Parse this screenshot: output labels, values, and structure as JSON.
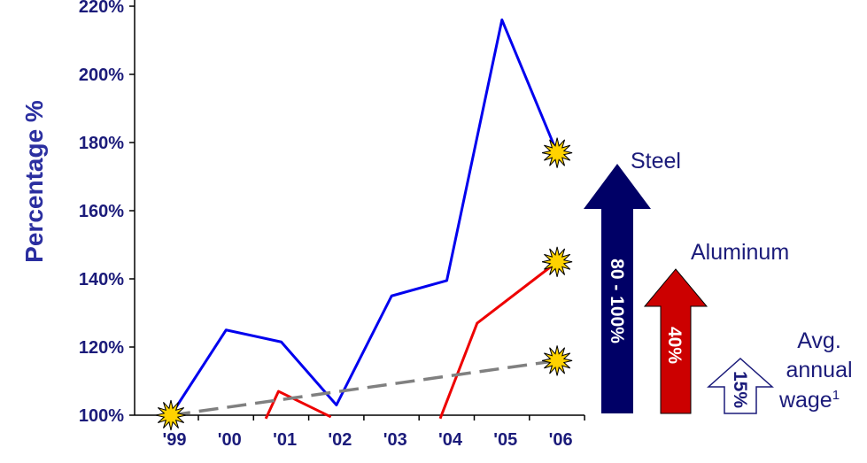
{
  "chart_data": {
    "type": "line",
    "title": "",
    "ylabel": "Percentage %",
    "xlabel": "",
    "categories": [
      "'99",
      "'00",
      "'01",
      "'02",
      "'03",
      "'04",
      "'05",
      "'06"
    ],
    "y_ticks": [
      "100%",
      "120%",
      "140%",
      "160%",
      "180%",
      "200%",
      "220%"
    ],
    "ylim": [
      100,
      225
    ],
    "series": [
      {
        "key": "steel",
        "color": "#0000ee",
        "style": "solid",
        "x": [
          0,
          1,
          2,
          3,
          4,
          5,
          6,
          7
        ],
        "y": [
          100,
          125,
          121.5,
          103,
          135,
          139.5,
          216,
          177
        ]
      },
      {
        "key": "aluminum_a",
        "color": "#ee0000",
        "style": "solid",
        "x": [
          1.72,
          1.95,
          2.9
        ],
        "y": [
          99,
          107,
          99.5
        ]
      },
      {
        "key": "aluminum_b",
        "color": "#ee0000",
        "style": "solid",
        "x": [
          4.88,
          5.55,
          7
        ],
        "y": [
          99,
          127,
          145
        ]
      },
      {
        "key": "wage",
        "color": "#808080",
        "style": "dashed",
        "x": [
          0,
          7
        ],
        "y": [
          100,
          116
        ]
      }
    ],
    "end_markers": [
      {
        "x": 0,
        "y": 100
      },
      {
        "x": 7,
        "y": 177
      },
      {
        "x": 7,
        "y": 145
      },
      {
        "x": 7,
        "y": 116
      }
    ],
    "annotations": {
      "steel": {
        "label": "Steel",
        "arrow_text": "80 - 100%",
        "color": "#000066"
      },
      "aluminum": {
        "label": "Aluminum",
        "arrow_text": "40%",
        "color": "#cc0000"
      },
      "wage": {
        "label_lines": [
          "Avg.",
          "annual",
          "wage"
        ],
        "superscript": "1",
        "arrow_text": "15%",
        "color": "#ffffff"
      }
    },
    "grid": false
  }
}
